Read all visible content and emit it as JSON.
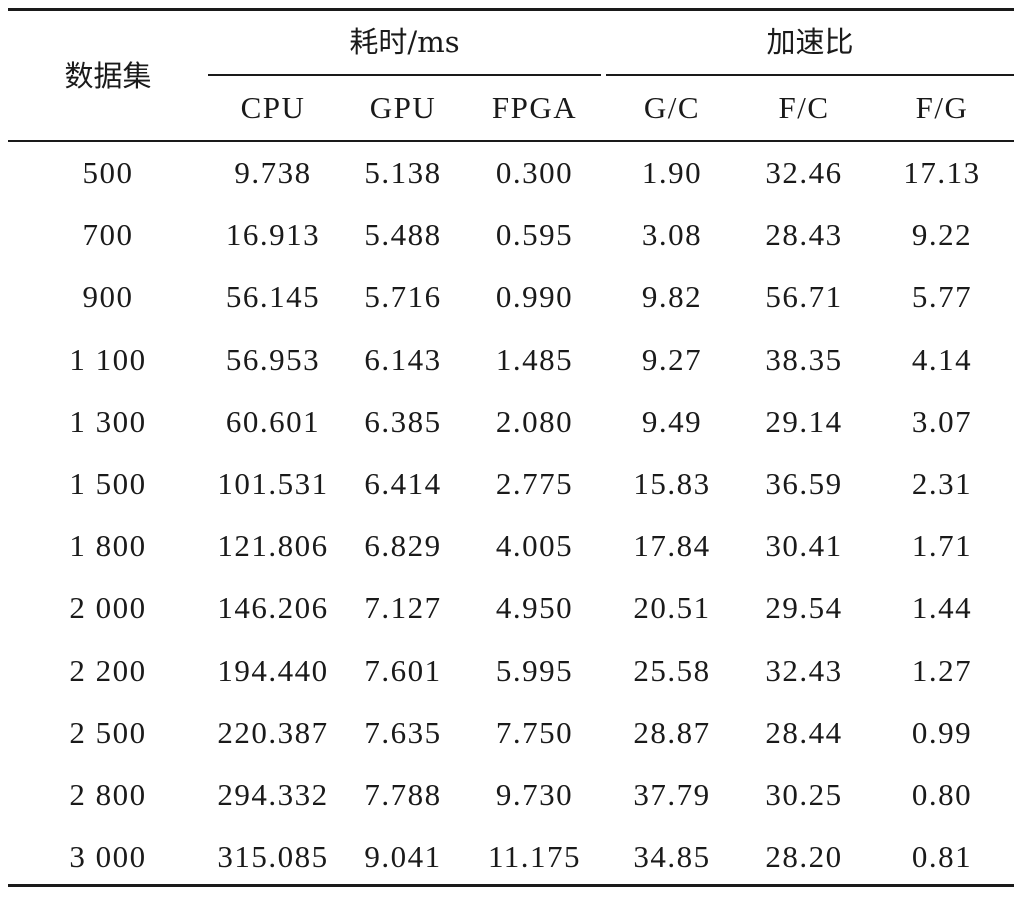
{
  "table": {
    "header": {
      "dataset": "数据集",
      "time_group": "耗时/ms",
      "speedup_group": "加速比",
      "columns": [
        "CPU",
        "GPU",
        "FPGA",
        "G/C",
        "F/C",
        "F/G"
      ]
    },
    "rows": [
      [
        "500",
        "9.738",
        "5.138",
        "0.300",
        "1.90",
        "32.46",
        "17.13"
      ],
      [
        "700",
        "16.913",
        "5.488",
        "0.595",
        "3.08",
        "28.43",
        "9.22"
      ],
      [
        "900",
        "56.145",
        "5.716",
        "0.990",
        "9.82",
        "56.71",
        "5.77"
      ],
      [
        "1 100",
        "56.953",
        "6.143",
        "1.485",
        "9.27",
        "38.35",
        "4.14"
      ],
      [
        "1 300",
        "60.601",
        "6.385",
        "2.080",
        "9.49",
        "29.14",
        "3.07"
      ],
      [
        "1 500",
        "101.531",
        "6.414",
        "2.775",
        "15.83",
        "36.59",
        "2.31"
      ],
      [
        "1 800",
        "121.806",
        "6.829",
        "4.005",
        "17.84",
        "30.41",
        "1.71"
      ],
      [
        "2 000",
        "146.206",
        "7.127",
        "4.950",
        "20.51",
        "29.54",
        "1.44"
      ],
      [
        "2 200",
        "194.440",
        "7.601",
        "5.995",
        "25.58",
        "32.43",
        "1.27"
      ],
      [
        "2 500",
        "220.387",
        "7.635",
        "7.750",
        "28.87",
        "28.44",
        "0.99"
      ],
      [
        "2 800",
        "294.332",
        "7.788",
        "9.730",
        "37.79",
        "30.25",
        "0.80"
      ],
      [
        "3 000",
        "315.085",
        "9.041",
        "11.175",
        "34.85",
        "28.20",
        "0.81"
      ]
    ]
  }
}
